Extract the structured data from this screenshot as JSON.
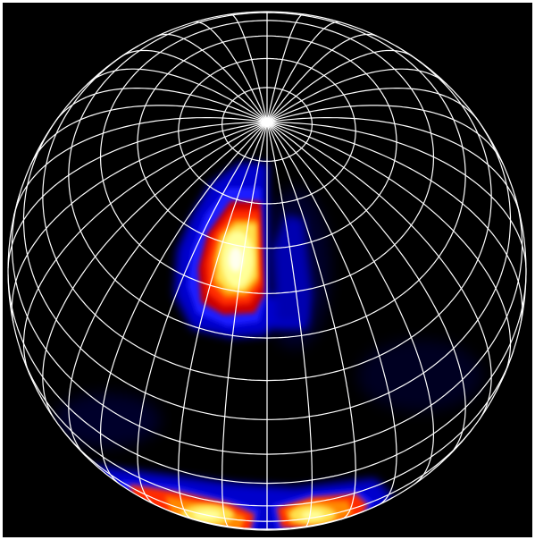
{
  "image": {
    "background": "#000000",
    "border_color": "#ffffff",
    "grid_color": "#ffffff",
    "colormap": [
      "#000000",
      "#0000cc",
      "#1f1fff",
      "#cc0000",
      "#ff2a00",
      "#ff8800",
      "#ffe14d",
      "#ffff99",
      "#ffffee"
    ],
    "features": [
      "polar-grid",
      "starspot-upper",
      "starspot-lower-left",
      "starspot-lower-right"
    ]
  }
}
